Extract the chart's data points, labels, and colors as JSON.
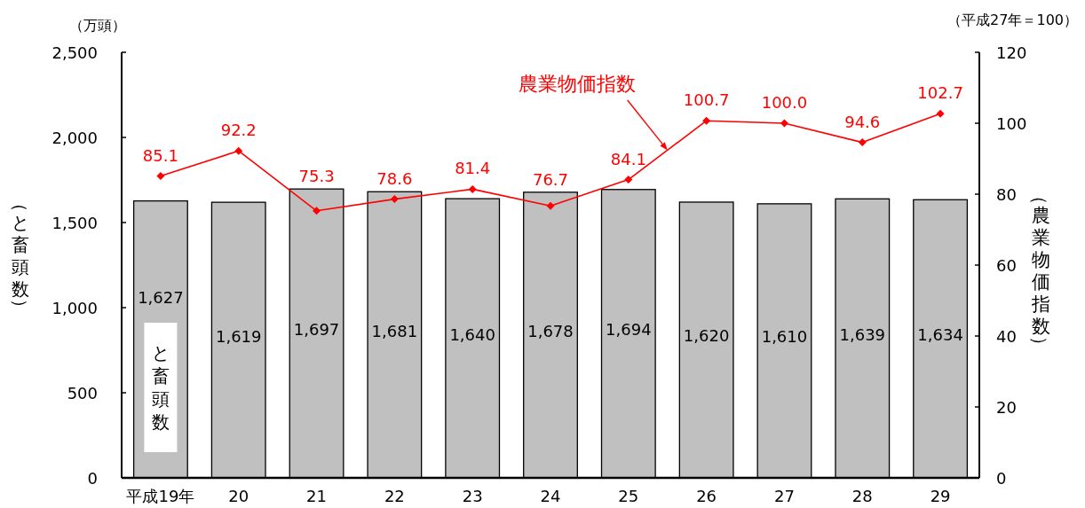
{
  "chart_data": {
    "type": "bar",
    "categories": [
      "平成19年",
      "20",
      "21",
      "22",
      "23",
      "24",
      "25",
      "26",
      "27",
      "28",
      "29"
    ],
    "series": [
      {
        "name": "と畜頭数",
        "color": "#c0c0c0",
        "values": [
          1627,
          1619,
          1697,
          1681,
          1640,
          1678,
          1694,
          1620,
          1610,
          1639,
          1634
        ],
        "value_labels": [
          "1,627",
          "1,619",
          "1,697",
          "1,681",
          "1,640",
          "1,678",
          "1,694",
          "1,620",
          "1,610",
          "1,639",
          "1,634"
        ]
      },
      {
        "name": "農業物価指数",
        "type": "line",
        "axis": "y2",
        "color": "#ff0000",
        "values": [
          85.1,
          92.2,
          75.3,
          78.6,
          81.4,
          76.7,
          84.1,
          100.7,
          100.0,
          94.6,
          102.7
        ],
        "value_labels": [
          "85.1",
          "92.2",
          "75.3",
          "78.6",
          "81.4",
          "76.7",
          "84.1",
          "100.7",
          "100.0",
          "94.6",
          "102.7"
        ]
      }
    ],
    "ylabel": "（と畜頭数）",
    "y2label": "（農業物価指数）",
    "ylim": [
      0,
      2500
    ],
    "yticks": [
      0,
      500,
      {
        "value": 1000,
        "label": "1,000"
      },
      {
        "value": 1500,
        "label": "1,500"
      },
      {
        "value": 2000,
        "label": "2,000"
      },
      {
        "value": 2500,
        "label": "2,500"
      }
    ],
    "y2lim": [
      0,
      120
    ],
    "y2ticks": [
      0,
      20,
      40,
      60,
      80,
      100,
      120
    ],
    "marker": "diamond",
    "line_style": "solid",
    "grid": false,
    "legend": false,
    "annotations": [
      "（万頭）",
      "（平成27年＝100）"
    ]
  }
}
